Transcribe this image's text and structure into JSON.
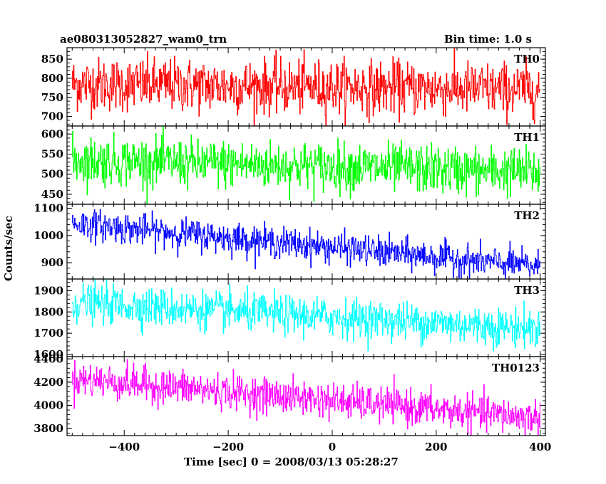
{
  "chart_data": {
    "type": "line",
    "title": "ae080313052827_wam0_trn",
    "subtitle": "Bin time: 1.0 s",
    "xlabel": "Time [sec] 0 = 2008/03/13 05:28:27",
    "ylabel": "Counts/sec",
    "xlim": [
      -510,
      410
    ],
    "xticks": [
      -400,
      -200,
      0,
      200,
      400
    ],
    "x_range": [
      -500,
      400
    ],
    "bin_time": 1.0,
    "panels": [
      {
        "name": "TH0",
        "color": "#ff0000",
        "ylim": [
          675,
          880
        ],
        "yticks": [
          700,
          750,
          800,
          850
        ],
        "trend": {
          "x": [
            -500,
            400
          ],
          "y": [
            785,
            770
          ]
        },
        "noise_sd": 35
      },
      {
        "name": "TH1",
        "color": "#00ff00",
        "ylim": [
          425,
          620
        ],
        "yticks": [
          450,
          500,
          550,
          600
        ],
        "trend": {
          "x": [
            -500,
            400
          ],
          "y": [
            535,
            505
          ]
        },
        "noise_sd": 30
      },
      {
        "name": "TH2",
        "color": "#0000ff",
        "ylim": [
          840,
          1115
        ],
        "yticks": [
          900,
          1000,
          1100
        ],
        "trend": {
          "x": [
            -500,
            400
          ],
          "y": [
            1045,
            885
          ]
        },
        "noise_sd": 28
      },
      {
        "name": "TH3",
        "color": "#00ffff",
        "ylim": [
          1590,
          1955
        ],
        "yticks": [
          1600,
          1700,
          1800,
          1900
        ],
        "trend": {
          "x": [
            -500,
            400
          ],
          "y": [
            1845,
            1720
          ]
        },
        "noise_sd": 45
      },
      {
        "name": "TH0123",
        "color": "#ff00ff",
        "ylim": [
          3740,
          4420
        ],
        "yticks": [
          3800,
          4000,
          4200,
          4400
        ],
        "trend": {
          "x": [
            -500,
            400
          ],
          "y": [
            4230,
            3890
          ]
        },
        "noise_sd": 75
      }
    ]
  }
}
